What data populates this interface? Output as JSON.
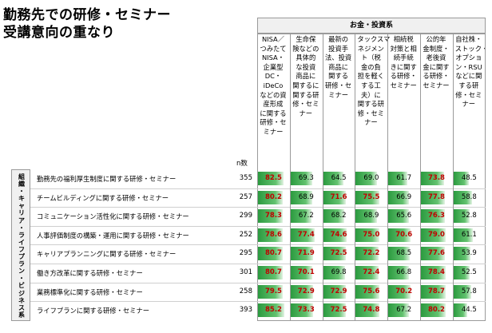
{
  "title_lines": [
    "勤務先での研修・セミナー",
    "受講意向の重なり"
  ],
  "group_header": "お金・投資系",
  "n_header": "n数",
  "category_label": "組織・キャリア・ライフプラン・ビジネス系",
  "highlight_color": "#c00000",
  "bar_color": "#2b9a3f",
  "chart_data": {
    "type": "table",
    "columns": [
      "NISA／\nつみたて\nNISA・\n企業型\nDC・\niDeCo\nなどの資\n産形成\nに関する\n研修・セ\nミナー",
      "生命保\n険などの\n具体的\nな投資\n商品に\n関するに\n関する研\n修・セミ\nナー",
      "最新の\n投資手\n法、投資\n商品に\n関する\n研修・セ\nミナー",
      "タックスマ\nネジメン\nト（税\n金の負\n担を軽く\nする工\n夫）に\n関する研\n修・セミ\nナー",
      "相続税\n対策と相\n続手続\nきに関す\nる研修・\nセミナー",
      "公的年\n金制度・\n老後資\n金に関す\nる研修・\nセミナー",
      "自社株・\nストック・\nオプショ\nン・RSU\nなどに関\nする研\n修・セミ\nナー"
    ],
    "rows": [
      {
        "label": "勤務先の福利厚生制度に関する研修・セミナー",
        "n": 355,
        "values": [
          82.5,
          69.3,
          64.5,
          69.0,
          61.7,
          73.8,
          48.5
        ],
        "highlight": [
          true,
          false,
          false,
          false,
          false,
          true,
          false
        ]
      },
      {
        "label": "チームビルディングに関する研修・セミナー",
        "n": 257,
        "values": [
          80.2,
          68.9,
          71.6,
          75.5,
          66.9,
          77.8,
          58.8
        ],
        "highlight": [
          true,
          false,
          true,
          true,
          false,
          true,
          false
        ]
      },
      {
        "label": "コミュニケーション活性化に関する研修・セミナー",
        "n": 299,
        "values": [
          78.3,
          67.2,
          68.2,
          68.9,
          65.6,
          76.3,
          52.8
        ],
        "highlight": [
          true,
          false,
          false,
          false,
          false,
          true,
          false
        ]
      },
      {
        "label": "人事評価制度の構築・運用に関する研修・セミナー",
        "n": 252,
        "values": [
          78.6,
          77.4,
          74.6,
          75.0,
          70.6,
          79.0,
          61.1
        ],
        "highlight": [
          true,
          true,
          true,
          true,
          true,
          true,
          false
        ]
      },
      {
        "label": "キャリアプランニングに関する研修・セミナー",
        "n": 295,
        "values": [
          80.7,
          71.9,
          72.5,
          72.2,
          68.5,
          77.6,
          53.9
        ],
        "highlight": [
          true,
          true,
          true,
          true,
          false,
          true,
          false
        ]
      },
      {
        "label": "働き方改革に関する研修・セミナー",
        "n": 301,
        "values": [
          80.7,
          70.1,
          69.8,
          72.4,
          66.8,
          78.4,
          52.5
        ],
        "highlight": [
          true,
          true,
          false,
          true,
          false,
          true,
          false
        ]
      },
      {
        "label": "業務標準化に関する研修・セミナー",
        "n": 258,
        "values": [
          79.5,
          72.9,
          72.9,
          75.6,
          70.2,
          78.7,
          57.8
        ],
        "highlight": [
          true,
          true,
          true,
          true,
          true,
          true,
          false
        ]
      },
      {
        "label": "ライフプランに関する研修・セミナー",
        "n": 393,
        "values": [
          85.2,
          73.3,
          72.5,
          74.8,
          67.2,
          80.2,
          44.5
        ],
        "highlight": [
          true,
          true,
          true,
          true,
          false,
          true,
          false
        ]
      }
    ],
    "value_range": [
      0,
      100
    ]
  }
}
